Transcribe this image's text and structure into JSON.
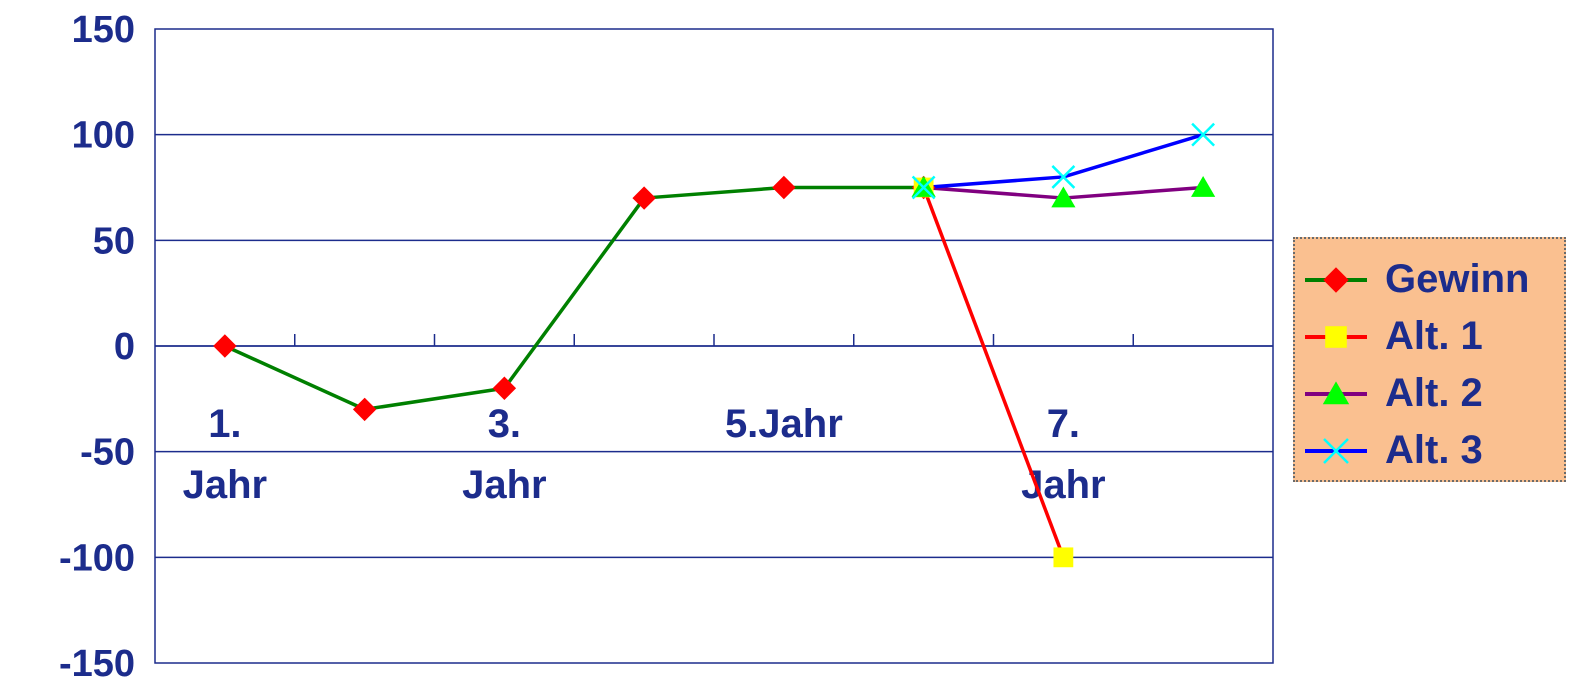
{
  "chart_data": {
    "type": "line",
    "title": "",
    "xlabel": "",
    "ylabel": "",
    "categories": [
      "1.\nJahr",
      "",
      "3.\nJahr",
      "",
      "5.Jahr",
      "",
      "7.\nJahr",
      ""
    ],
    "ylim": [
      -150,
      150
    ],
    "yticks": [
      150,
      100,
      50,
      0,
      -50,
      -100,
      -150
    ],
    "ytick_labels": [
      "150",
      "100",
      "50",
      "0",
      "-50",
      "-100",
      "-150"
    ],
    "grid": true,
    "legend_position": "right",
    "series": [
      {
        "name": "Gewinn",
        "line_color": "#008000",
        "marker": "diamond",
        "marker_color": "#ff0000",
        "points": [
          {
            "x": 1,
            "y": 0
          },
          {
            "x": 2,
            "y": -30
          },
          {
            "x": 3,
            "y": -20
          },
          {
            "x": 4,
            "y": 70
          },
          {
            "x": 5,
            "y": 75
          },
          {
            "x": 6,
            "y": 75
          }
        ]
      },
      {
        "name": "Alt. 1",
        "line_color": "#ff0000",
        "marker": "square",
        "marker_color": "#ffff00",
        "points": [
          {
            "x": 6,
            "y": 75
          },
          {
            "x": 7,
            "y": -100
          }
        ]
      },
      {
        "name": "Alt. 2",
        "line_color": "#800080",
        "marker": "triangle",
        "marker_color": "#00ff00",
        "points": [
          {
            "x": 6,
            "y": 75
          },
          {
            "x": 7,
            "y": 70
          },
          {
            "x": 8,
            "y": 75
          }
        ]
      },
      {
        "name": "Alt. 3",
        "line_color": "#0000ff",
        "marker": "x",
        "marker_color": "#00ffff",
        "points": [
          {
            "x": 6,
            "y": 75
          },
          {
            "x": 7,
            "y": 80
          },
          {
            "x": 8,
            "y": 100
          }
        ]
      }
    ]
  },
  "legend": {
    "items": [
      "Gewinn",
      "Alt. 1",
      "Alt. 2",
      "Alt. 3"
    ]
  }
}
